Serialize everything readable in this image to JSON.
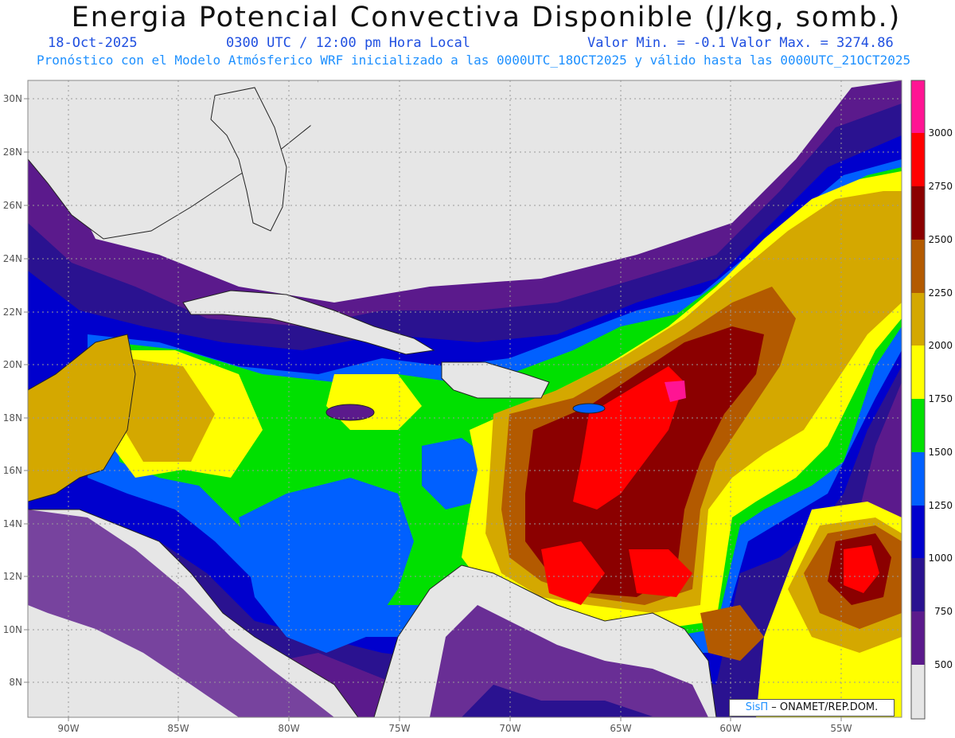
{
  "header": {
    "title": "Energia Potencial Convectiva Disponible (J/kg, somb.)",
    "date": "18-Oct-2025",
    "time": "0300 UTC / 12:00 pm Hora Local",
    "min_label": "Valor Min. = -0.1",
    "max_label": "Valor Max. = 3274.86",
    "forecast_line": "Pronóstico con el Modelo Atmósferico WRF inicializado a las 0000UTC_18OCT2025 y válido hasta las  0000UTC_21OCT2025"
  },
  "map": {
    "lat_labels": [
      "30N",
      "28N",
      "26N",
      "24N",
      "22N",
      "20N",
      "18N",
      "16N",
      "14N",
      "12N",
      "10N",
      "8N"
    ],
    "lon_labels": [
      "90W",
      "85W",
      "80W",
      "75W",
      "70W",
      "65W",
      "60W",
      "55W"
    ]
  },
  "colorbar": {
    "labels": [
      "3000",
      "2750",
      "2500",
      "2250",
      "2000",
      "1750",
      "1500",
      "1250",
      "1000",
      "750",
      "500"
    ],
    "colors": [
      "#ff1493",
      "#ff0000",
      "#8b0000",
      "#b35a00",
      "#d4a800",
      "#ffff00",
      "#00e000",
      "#0060ff",
      "#0000cd",
      "#2a1290",
      "#5b1a8c",
      "#e6e6e6"
    ]
  },
  "credit": {
    "brand": "SisΠ",
    "text": "– ONAMET/REP.DOM."
  }
}
